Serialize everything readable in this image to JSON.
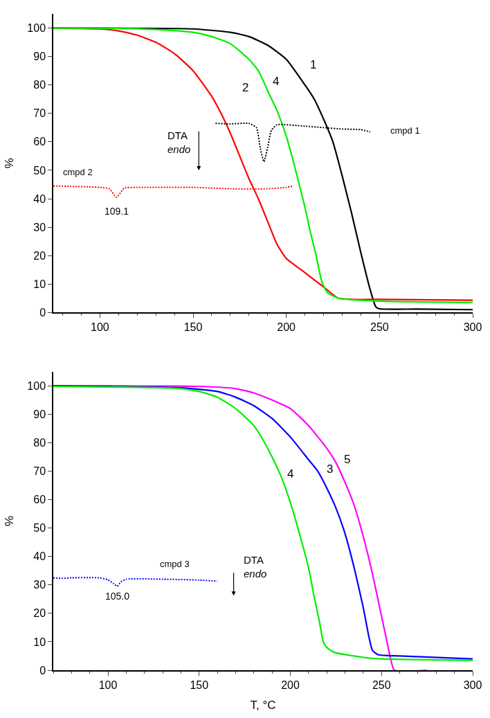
{
  "chart_data": [
    {
      "type": "line",
      "ylabel": "%",
      "xlim": [
        75,
        300
      ],
      "ylim": [
        0,
        105
      ],
      "xticks": [
        100,
        150,
        200,
        250,
        300
      ],
      "yticks": [
        0,
        10,
        20,
        30,
        40,
        50,
        60,
        70,
        80,
        90,
        100
      ],
      "marker": "none",
      "series": [
        {
          "color": "#000000",
          "x": [
            75,
            100,
            150,
            170,
            180,
            190,
            200,
            210,
            215,
            220,
            225,
            230,
            235,
            240,
            245,
            248,
            250,
            270,
            300
          ],
          "values": [
            100,
            100,
            99.7,
            98.5,
            97,
            94,
            89,
            80,
            75,
            68,
            60,
            48,
            35,
            21,
            8,
            2,
            1.3,
            1.2,
            1
          ]
        },
        {
          "color": "#ff0000",
          "x": [
            75,
            100,
            110,
            120,
            130,
            140,
            150,
            160,
            165,
            170,
            175,
            180,
            185,
            190,
            195,
            200,
            210,
            220,
            228,
            250,
            300
          ],
          "values": [
            100,
            99.7,
            99,
            97.5,
            95,
            91,
            85,
            76,
            70,
            63,
            55,
            47,
            40,
            32,
            24,
            19,
            14,
            9,
            5,
            4.6,
            4.3
          ]
        },
        {
          "color": "#00ee00",
          "x": [
            75,
            100,
            130,
            150,
            160,
            170,
            180,
            185,
            190,
            195,
            200,
            205,
            210,
            213,
            216,
            219,
            222,
            228,
            250,
            300
          ],
          "values": [
            100,
            100,
            99.5,
            98.5,
            97,
            94.5,
            89,
            85,
            78,
            71,
            62,
            50,
            37,
            28,
            20,
            11,
            7,
            5,
            4,
            3.5
          ]
        },
        {
          "color": "#000000",
          "line_style": "dotted",
          "x": [
            162,
            170,
            180,
            184,
            186,
            188,
            190,
            192,
            195,
            210,
            220,
            230,
            240,
            245
          ],
          "values": [
            66.5,
            66.3,
            66.5,
            65,
            58,
            53,
            58,
            64,
            66,
            65.5,
            65,
            64.5,
            64.3,
            63.5
          ]
        },
        {
          "color": "#ff0000",
          "line_style": "dotted",
          "x": [
            75,
            100,
            105,
            109,
            113,
            120,
            150,
            170,
            190,
            200,
            204
          ],
          "values": [
            44.5,
            44,
            43.5,
            40.5,
            43.7,
            44,
            44,
            43.5,
            43.5,
            44,
            44.5
          ]
        }
      ],
      "annotations": [
        "1",
        "2",
        "4",
        "cmpd 1",
        "cmpd 2",
        "109.1",
        "DTA\nendo"
      ]
    },
    {
      "type": "line",
      "xlabel": "T, °C",
      "ylabel": "%",
      "xlim": [
        70,
        300
      ],
      "ylim": [
        0,
        105
      ],
      "xticks": [
        100,
        150,
        200,
        250,
        300
      ],
      "yticks": [
        0,
        10,
        20,
        30,
        40,
        50,
        60,
        70,
        80,
        90,
        100
      ],
      "marker": "none",
      "series": [
        {
          "color": "#ff00ff",
          "x": [
            70,
            100,
            150,
            170,
            180,
            190,
            200,
            210,
            220,
            225,
            230,
            235,
            240,
            245,
            250,
            253,
            255,
            257,
            275
          ],
          "values": [
            100,
            100,
            99.8,
            99,
            97.5,
            95,
            92,
            86,
            78,
            73,
            66,
            58,
            47,
            34,
            19,
            10,
            4,
            0,
            0
          ]
        },
        {
          "color": "#0000ff",
          "x": [
            70,
            100,
            140,
            160,
            170,
            180,
            190,
            200,
            210,
            215,
            220,
            225,
            230,
            235,
            240,
            243,
            245,
            248,
            260,
            300
          ],
          "values": [
            100,
            99.7,
            99.3,
            98,
            96,
            93,
            88.5,
            82,
            74,
            70,
            64,
            57,
            48,
            36,
            22,
            12,
            7,
            5.5,
            5,
            4
          ]
        },
        {
          "color": "#00ee00",
          "x": [
            70,
            100,
            140,
            150,
            160,
            170,
            180,
            185,
            190,
            195,
            200,
            205,
            210,
            213,
            216,
            218,
            220,
            224,
            240,
            250,
            300
          ],
          "values": [
            99.8,
            99.6,
            99,
            98,
            96,
            92,
            86,
            81,
            75,
            68,
            59,
            48,
            36,
            26,
            17,
            10,
            8,
            6.3,
            4.5,
            4,
            3.5
          ]
        },
        {
          "color": "#0000ff",
          "line_style": "dotted",
          "x": [
            70,
            75,
            80,
            95,
            100,
            103,
            105,
            107,
            110,
            130,
            150,
            160
          ],
          "values": [
            32.5,
            32.3,
            32.5,
            32.5,
            31.8,
            30.5,
            29.5,
            31,
            32,
            32,
            31.7,
            31.3
          ]
        }
      ],
      "annotations": [
        "4",
        "3",
        "5",
        "cmpd 3",
        "105.0",
        "DTA\nendo"
      ]
    }
  ]
}
